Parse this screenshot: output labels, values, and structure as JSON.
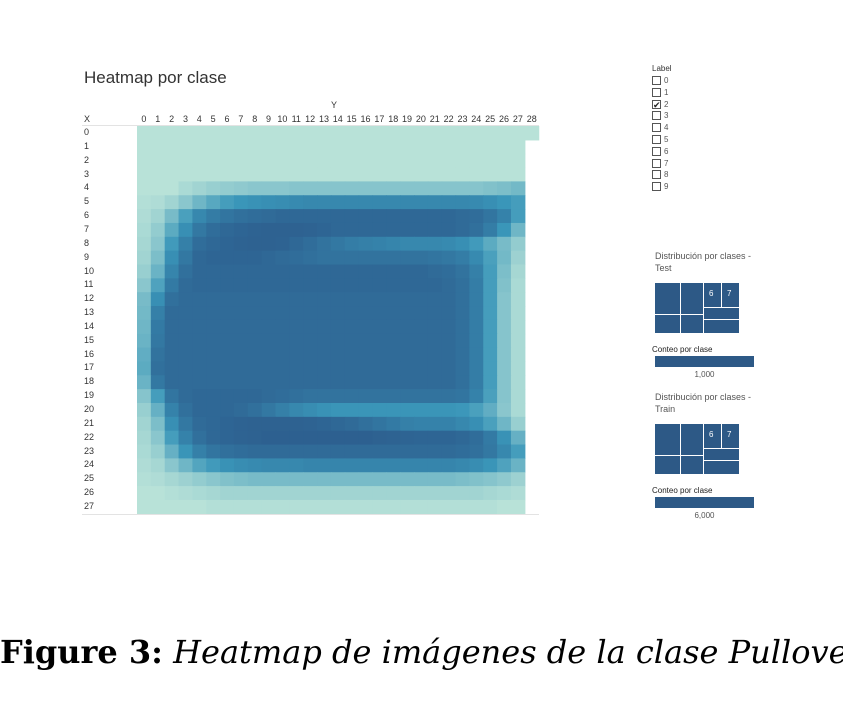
{
  "title": "Heatmap por clase",
  "y_axis_label": "Y",
  "x_axis_label": "X",
  "colors": {
    "low": "#b8e2d8",
    "mid": "#3a96b9",
    "high": "#2c5b8c",
    "treemap": "#2d5986",
    "bar": "#2d5986"
  },
  "chart_data": {
    "type": "heatmap",
    "x_title": "X",
    "y_title": "Y",
    "columns": [
      "0",
      "1",
      "2",
      "3",
      "4",
      "5",
      "6",
      "7",
      "8",
      "9",
      "10",
      "11",
      "12",
      "13",
      "14",
      "15",
      "16",
      "17",
      "18",
      "19",
      "20",
      "21",
      "22",
      "23",
      "24",
      "25",
      "26",
      "27",
      "28"
    ],
    "rows": [
      "0",
      "1",
      "2",
      "3",
      "4",
      "5",
      "6",
      "7",
      "8",
      "9",
      "10",
      "11",
      "12",
      "13",
      "14",
      "15",
      "16",
      "17",
      "18",
      "19",
      "20",
      "21",
      "22",
      "23",
      "24",
      "25",
      "26",
      "27"
    ],
    "value_scale": [
      0,
      1
    ],
    "values": [
      [
        0,
        0,
        0,
        0,
        0,
        0,
        0,
        0,
        0,
        0,
        0,
        0,
        0,
        0,
        0,
        0,
        0,
        0,
        0,
        0,
        0,
        0,
        0,
        0,
        0,
        0,
        0,
        0,
        0
      ],
      [
        0,
        0,
        0,
        0,
        0,
        0,
        0,
        0,
        0,
        0,
        0,
        0,
        0,
        0,
        0,
        0,
        0,
        0,
        0,
        0,
        0,
        0,
        0,
        0,
        0,
        0,
        0,
        0,
        null
      ],
      [
        0,
        0,
        0,
        0,
        0,
        0,
        0,
        0,
        0,
        0,
        0,
        0,
        0,
        0,
        0,
        0,
        0,
        0,
        0,
        0,
        0,
        0,
        0,
        0,
        0,
        0,
        0,
        0,
        null
      ],
      [
        0,
        0,
        0,
        0,
        0,
        0,
        0,
        0,
        0,
        0,
        0,
        0,
        0,
        0,
        0,
        0,
        0,
        0,
        0,
        0,
        0,
        0,
        0,
        0,
        0,
        0,
        0,
        0,
        null
      ],
      [
        0,
        0,
        0,
        0.06,
        0.1,
        0.14,
        0.16,
        0.18,
        0.2,
        0.2,
        0.2,
        0.22,
        0.22,
        0.22,
        0.22,
        0.22,
        0.22,
        0.22,
        0.22,
        0.22,
        0.22,
        0.22,
        0.22,
        0.22,
        0.22,
        0.24,
        0.26,
        0.3,
        null
      ],
      [
        0.02,
        0.04,
        0.1,
        0.2,
        0.32,
        0.42,
        0.5,
        0.55,
        0.58,
        0.6,
        0.62,
        0.64,
        0.66,
        0.66,
        0.66,
        0.66,
        0.66,
        0.66,
        0.66,
        0.66,
        0.66,
        0.66,
        0.66,
        0.66,
        0.64,
        0.6,
        0.55,
        0.5,
        null
      ],
      [
        0.04,
        0.1,
        0.28,
        0.48,
        0.66,
        0.75,
        0.8,
        0.84,
        0.86,
        0.88,
        0.9,
        0.9,
        0.9,
        0.9,
        0.9,
        0.9,
        0.9,
        0.9,
        0.9,
        0.9,
        0.9,
        0.9,
        0.9,
        0.88,
        0.86,
        0.8,
        0.7,
        0.5,
        null
      ],
      [
        0.06,
        0.16,
        0.4,
        0.6,
        0.78,
        0.86,
        0.9,
        0.92,
        0.94,
        0.95,
        0.95,
        0.95,
        0.94,
        0.92,
        0.9,
        0.9,
        0.9,
        0.9,
        0.9,
        0.9,
        0.9,
        0.9,
        0.9,
        0.88,
        0.84,
        0.74,
        0.55,
        0.32,
        null
      ],
      [
        0.08,
        0.2,
        0.52,
        0.72,
        0.86,
        0.9,
        0.92,
        0.94,
        0.95,
        0.95,
        0.94,
        0.9,
        0.86,
        0.82,
        0.78,
        0.74,
        0.72,
        0.7,
        0.68,
        0.66,
        0.66,
        0.66,
        0.64,
        0.6,
        0.52,
        0.4,
        0.28,
        0.16,
        null
      ],
      [
        0.1,
        0.26,
        0.6,
        0.78,
        0.9,
        0.92,
        0.92,
        0.92,
        0.92,
        0.9,
        0.88,
        0.86,
        0.84,
        0.82,
        0.82,
        0.82,
        0.82,
        0.82,
        0.82,
        0.82,
        0.82,
        0.8,
        0.78,
        0.74,
        0.64,
        0.48,
        0.3,
        0.12,
        null
      ],
      [
        0.14,
        0.34,
        0.68,
        0.84,
        0.9,
        0.9,
        0.9,
        0.9,
        0.9,
        0.9,
        0.9,
        0.9,
        0.9,
        0.9,
        0.9,
        0.9,
        0.9,
        0.9,
        0.9,
        0.9,
        0.9,
        0.88,
        0.86,
        0.82,
        0.72,
        0.5,
        0.26,
        0.08,
        null
      ],
      [
        0.2,
        0.46,
        0.76,
        0.88,
        0.9,
        0.9,
        0.9,
        0.9,
        0.9,
        0.9,
        0.9,
        0.9,
        0.9,
        0.9,
        0.9,
        0.9,
        0.9,
        0.9,
        0.9,
        0.9,
        0.9,
        0.9,
        0.88,
        0.84,
        0.74,
        0.5,
        0.24,
        0.06,
        null
      ],
      [
        0.28,
        0.6,
        0.84,
        0.88,
        0.88,
        0.88,
        0.88,
        0.88,
        0.88,
        0.88,
        0.88,
        0.88,
        0.88,
        0.88,
        0.88,
        0.88,
        0.88,
        0.88,
        0.88,
        0.88,
        0.88,
        0.88,
        0.88,
        0.84,
        0.74,
        0.5,
        0.22,
        0.06,
        null
      ],
      [
        0.3,
        0.72,
        0.88,
        0.88,
        0.88,
        0.88,
        0.88,
        0.88,
        0.88,
        0.88,
        0.88,
        0.88,
        0.88,
        0.88,
        0.88,
        0.88,
        0.88,
        0.88,
        0.88,
        0.88,
        0.88,
        0.88,
        0.88,
        0.84,
        0.74,
        0.5,
        0.22,
        0.06,
        null
      ],
      [
        0.32,
        0.76,
        0.88,
        0.88,
        0.88,
        0.88,
        0.88,
        0.88,
        0.88,
        0.88,
        0.88,
        0.88,
        0.88,
        0.88,
        0.88,
        0.88,
        0.88,
        0.88,
        0.88,
        0.88,
        0.88,
        0.88,
        0.88,
        0.84,
        0.74,
        0.5,
        0.22,
        0.06,
        null
      ],
      [
        0.34,
        0.78,
        0.88,
        0.88,
        0.88,
        0.88,
        0.88,
        0.88,
        0.88,
        0.88,
        0.88,
        0.88,
        0.88,
        0.88,
        0.88,
        0.88,
        0.88,
        0.88,
        0.88,
        0.88,
        0.88,
        0.88,
        0.88,
        0.84,
        0.74,
        0.5,
        0.22,
        0.06,
        null
      ],
      [
        0.38,
        0.82,
        0.88,
        0.88,
        0.88,
        0.88,
        0.88,
        0.88,
        0.88,
        0.88,
        0.88,
        0.88,
        0.88,
        0.88,
        0.88,
        0.88,
        0.88,
        0.88,
        0.88,
        0.88,
        0.88,
        0.88,
        0.88,
        0.84,
        0.74,
        0.5,
        0.22,
        0.06,
        null
      ],
      [
        0.4,
        0.84,
        0.88,
        0.88,
        0.88,
        0.88,
        0.88,
        0.88,
        0.88,
        0.88,
        0.88,
        0.88,
        0.88,
        0.88,
        0.88,
        0.88,
        0.88,
        0.88,
        0.88,
        0.88,
        0.88,
        0.88,
        0.88,
        0.84,
        0.74,
        0.5,
        0.22,
        0.06,
        null
      ],
      [
        0.34,
        0.78,
        0.88,
        0.88,
        0.88,
        0.88,
        0.88,
        0.88,
        0.88,
        0.88,
        0.88,
        0.88,
        0.88,
        0.88,
        0.88,
        0.88,
        0.88,
        0.88,
        0.88,
        0.88,
        0.88,
        0.88,
        0.88,
        0.84,
        0.74,
        0.5,
        0.22,
        0.06,
        null
      ],
      [
        0.22,
        0.5,
        0.8,
        0.88,
        0.9,
        0.9,
        0.9,
        0.9,
        0.9,
        0.88,
        0.86,
        0.84,
        0.82,
        0.82,
        0.82,
        0.82,
        0.82,
        0.82,
        0.82,
        0.82,
        0.82,
        0.82,
        0.82,
        0.8,
        0.7,
        0.48,
        0.22,
        0.06,
        null
      ],
      [
        0.14,
        0.36,
        0.7,
        0.84,
        0.9,
        0.9,
        0.9,
        0.88,
        0.84,
        0.78,
        0.72,
        0.66,
        0.62,
        0.58,
        0.56,
        0.56,
        0.56,
        0.56,
        0.56,
        0.56,
        0.56,
        0.56,
        0.56,
        0.54,
        0.48,
        0.38,
        0.2,
        0.06,
        null
      ],
      [
        0.1,
        0.26,
        0.6,
        0.78,
        0.88,
        0.9,
        0.92,
        0.94,
        0.95,
        0.95,
        0.95,
        0.95,
        0.94,
        0.92,
        0.9,
        0.88,
        0.84,
        0.8,
        0.76,
        0.72,
        0.7,
        0.7,
        0.7,
        0.66,
        0.6,
        0.48,
        0.32,
        0.14,
        null
      ],
      [
        0.08,
        0.2,
        0.5,
        0.7,
        0.84,
        0.9,
        0.92,
        0.94,
        0.95,
        0.96,
        0.96,
        0.96,
        0.96,
        0.96,
        0.96,
        0.96,
        0.96,
        0.95,
        0.94,
        0.93,
        0.92,
        0.92,
        0.92,
        0.9,
        0.86,
        0.76,
        0.58,
        0.36,
        null
      ],
      [
        0.06,
        0.14,
        0.36,
        0.56,
        0.72,
        0.8,
        0.84,
        0.86,
        0.88,
        0.88,
        0.88,
        0.88,
        0.88,
        0.88,
        0.88,
        0.88,
        0.88,
        0.88,
        0.88,
        0.88,
        0.88,
        0.88,
        0.88,
        0.86,
        0.84,
        0.78,
        0.66,
        0.5,
        null
      ],
      [
        0.04,
        0.08,
        0.2,
        0.32,
        0.44,
        0.52,
        0.58,
        0.62,
        0.64,
        0.66,
        0.66,
        0.66,
        0.68,
        0.68,
        0.68,
        0.68,
        0.68,
        0.68,
        0.68,
        0.68,
        0.68,
        0.68,
        0.68,
        0.66,
        0.62,
        0.56,
        0.46,
        0.34,
        null
      ],
      [
        0.02,
        0.04,
        0.08,
        0.12,
        0.16,
        0.2,
        0.24,
        0.26,
        0.28,
        0.28,
        0.28,
        0.28,
        0.28,
        0.28,
        0.28,
        0.28,
        0.28,
        0.28,
        0.28,
        0.28,
        0.28,
        0.28,
        0.28,
        0.26,
        0.24,
        0.22,
        0.18,
        0.12,
        null
      ],
      [
        0,
        0,
        0.02,
        0.04,
        0.06,
        0.08,
        0.1,
        0.1,
        0.1,
        0.1,
        0.1,
        0.1,
        0.1,
        0.1,
        0.1,
        0.1,
        0.1,
        0.1,
        0.1,
        0.1,
        0.1,
        0.1,
        0.1,
        0.1,
        0.1,
        0.08,
        0.06,
        0.04,
        null
      ],
      [
        0,
        0,
        0,
        0,
        0,
        0.02,
        0.02,
        0.02,
        0.02,
        0.02,
        0.02,
        0.02,
        0.02,
        0.02,
        0.02,
        0.02,
        0.02,
        0.02,
        0.02,
        0.02,
        0.02,
        0.02,
        0.02,
        0.02,
        0.02,
        0.02,
        0,
        0,
        null
      ]
    ]
  },
  "legend": {
    "title": "Label",
    "items": [
      {
        "label": "0",
        "checked": false
      },
      {
        "label": "1",
        "checked": false
      },
      {
        "label": "2",
        "checked": true
      },
      {
        "label": "3",
        "checked": false
      },
      {
        "label": "4",
        "checked": false
      },
      {
        "label": "5",
        "checked": false
      },
      {
        "label": "6",
        "checked": false
      },
      {
        "label": "7",
        "checked": false
      },
      {
        "label": "8",
        "checked": false
      },
      {
        "label": "9",
        "checked": false
      }
    ],
    "check_glyph": "✔"
  },
  "test_panel": {
    "title": "Distribución por clases - Test",
    "treemap_labels": [
      "6",
      "7"
    ],
    "conteo_title": "Conteo por clase",
    "conteo_value": "1,000"
  },
  "train_panel": {
    "title": "Distribución por clases - Train",
    "treemap_labels": [
      "6",
      "7"
    ],
    "conteo_title": "Conteo por clase",
    "conteo_value": "6,000"
  },
  "caption": {
    "label": "Figure 3:",
    "text": "Heatmap de imágenes de la clase Pullover."
  }
}
